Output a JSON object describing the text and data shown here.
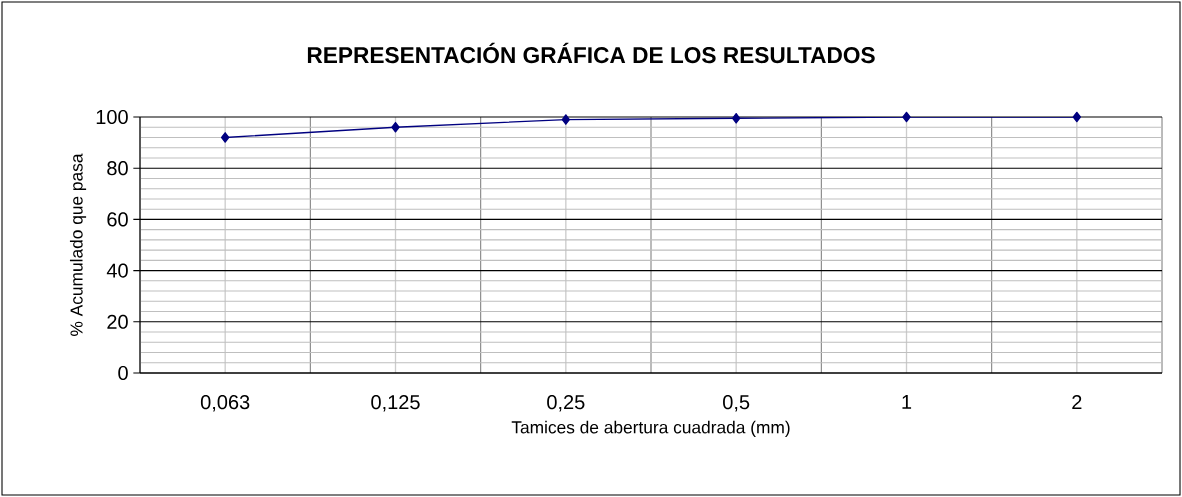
{
  "chart_data": {
    "type": "line",
    "title": "REPRESENTACIÓN GRÁFICA DE LOS RESULTADOS",
    "xlabel": "Tamices de abertura cuadrada (mm)",
    "ylabel": "% Acumulado que pasa",
    "categories": [
      "0,063",
      "0,125",
      "0,25",
      "0,5",
      "1",
      "2"
    ],
    "values": [
      92,
      96,
      99,
      99.5,
      100,
      100
    ],
    "color": "#000080",
    "ylim": [
      0,
      100
    ],
    "yticks": [
      0,
      20,
      40,
      60,
      80,
      100
    ],
    "grid": true,
    "marker": "diamond"
  }
}
